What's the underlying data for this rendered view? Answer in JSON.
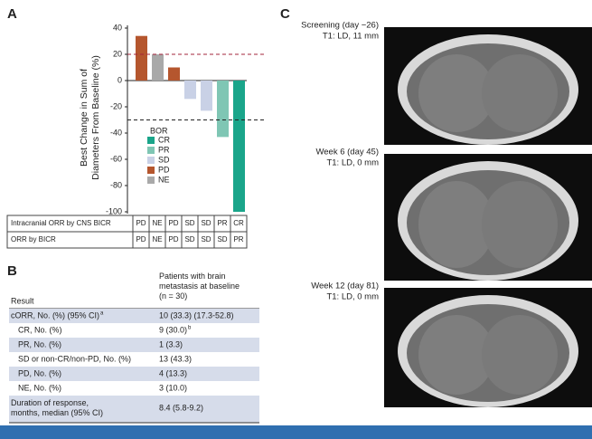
{
  "panel_labels": {
    "a": "A",
    "b": "B",
    "c": "C"
  },
  "chart_data": {
    "type": "bar",
    "ylabel": [
      "Best Change in Sum of",
      "Diameters From Baseline (%)"
    ],
    "values": [
      34,
      20,
      10,
      -14,
      -23,
      -43,
      -100
    ],
    "ylim": [
      -100,
      40
    ],
    "yticks": [
      40,
      20,
      0,
      -20,
      -40,
      -60,
      -80,
      -100
    ],
    "reference_lines": [
      {
        "value": 20,
        "color": "#a3243b"
      },
      {
        "value": -30,
        "color": "#222222"
      }
    ],
    "legend": {
      "title": "BOR",
      "items": [
        {
          "name": "CR",
          "color": "#1aa58a"
        },
        {
          "name": "PR",
          "color": "#7fc6b4"
        },
        {
          "name": "SD",
          "color": "#c9d1e6"
        },
        {
          "name": "PD",
          "color": "#b5562e"
        },
        {
          "name": "NE",
          "color": "#a9a9a9"
        }
      ]
    },
    "table_rows": [
      {
        "label": "Intracranial ORR by CNS BICR",
        "values": [
          "PD",
          "NE",
          "PD",
          "SD",
          "SD",
          "PR",
          "CR"
        ]
      },
      {
        "label": "ORR by BICR",
        "values": [
          "PD",
          "NE",
          "PD",
          "SD",
          "SD",
          "SD",
          "PR"
        ]
      }
    ]
  },
  "table": {
    "header": [
      "Result",
      "Patients with brain metastasis at baseline (n = 30)"
    ],
    "rows": [
      [
        "cORR, No. (%) (95% CI)",
        "10 (33.3) (17.3-52.8)"
      ],
      [
        "CR, No. (%)",
        "9 (30.0)"
      ],
      [
        "PR, No. (%)",
        "1 (3.3)"
      ],
      [
        "SD or non-CR/non-PD, No. (%)",
        "13 (43.3)"
      ],
      [
        "PD, No. (%)",
        "4 (13.3)"
      ],
      [
        "NE, No. (%)",
        "3 (10.0)"
      ],
      [
        "Duration of response, months, median (95% CI)",
        "8.4 (5.8-9.2)"
      ]
    ],
    "footnote_marks": {
      "cORR": "a",
      "CR": "b"
    }
  },
  "scans": [
    {
      "title": "Screening (day −26)",
      "measure": "T1: LD, 11 mm"
    },
    {
      "title": "Week 6 (day 45)",
      "measure": "T1: LD, 0 mm"
    },
    {
      "title": "Week 12 (day 81)",
      "measure": "T1: LD, 0 mm"
    }
  ]
}
